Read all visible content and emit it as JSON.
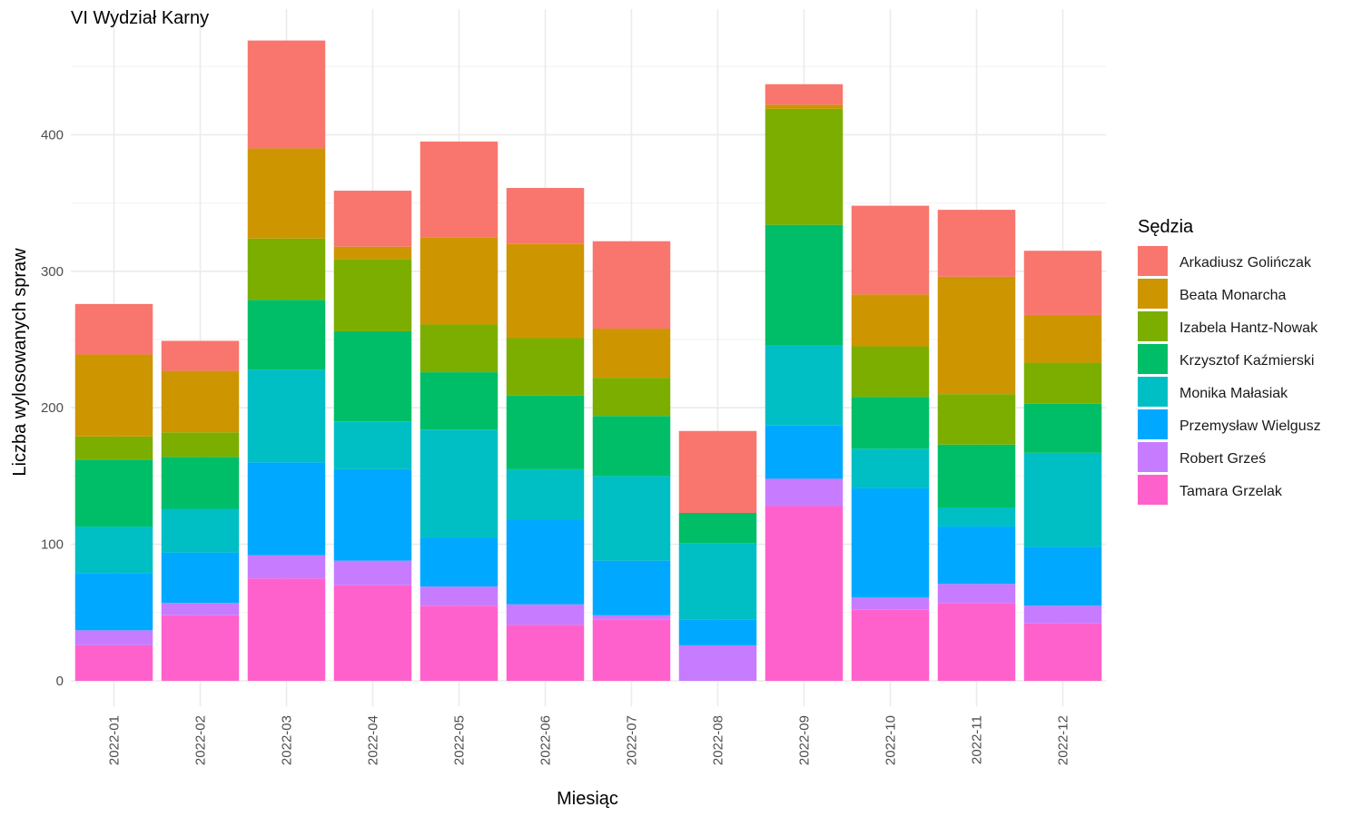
{
  "chart_data": {
    "type": "bar",
    "stacked": true,
    "title": "VI Wydział Karny",
    "xlabel": "Miesiąc",
    "ylabel": "Liczba wylosowanych spraw",
    "ylim": [
      0,
      480
    ],
    "yticks": [
      0,
      100,
      200,
      300,
      400
    ],
    "grid": true,
    "legend_title": "Sędzia",
    "legend_position": "right",
    "categories": [
      "2022-01",
      "2022-02",
      "2022-03",
      "2022-04",
      "2022-05",
      "2022-06",
      "2022-07",
      "2022-08",
      "2022-09",
      "2022-10",
      "2022-11",
      "2022-12"
    ],
    "series": [
      {
        "name": "Tamara Grzelak",
        "color": "#FF61CC",
        "values": [
          26,
          48,
          75,
          70,
          55,
          41,
          45,
          0,
          128,
          52,
          57,
          42
        ]
      },
      {
        "name": "Robert Grześ",
        "color": "#C77CFF",
        "values": [
          11,
          9,
          17,
          18,
          14,
          15,
          3,
          26,
          20,
          9,
          14,
          13
        ]
      },
      {
        "name": "Przemysław Wielgusz",
        "color": "#00A9FF",
        "values": [
          42,
          37,
          68,
          67,
          36,
          62,
          40,
          19,
          39,
          80,
          42,
          43
        ]
      },
      {
        "name": "Monika Małasiak",
        "color": "#00BFC4",
        "values": [
          34,
          32,
          68,
          35,
          79,
          37,
          62,
          56,
          59,
          29,
          14,
          69
        ]
      },
      {
        "name": "Krzysztof Kaźmierski",
        "color": "#00BE67",
        "values": [
          49,
          38,
          51,
          66,
          42,
          54,
          44,
          22,
          88,
          38,
          46,
          36
        ]
      },
      {
        "name": "Izabela Hantz-Nowak",
        "color": "#7CAE00",
        "values": [
          17,
          18,
          45,
          53,
          35,
          42,
          28,
          0,
          85,
          37,
          37,
          30
        ]
      },
      {
        "name": "Beata Monarcha",
        "color": "#CD9600",
        "values": [
          60,
          45,
          66,
          9,
          64,
          69,
          36,
          0,
          3,
          38,
          86,
          35
        ]
      },
      {
        "name": "Arkadiusz Golińczak",
        "color": "#F8766D",
        "values": [
          37,
          22,
          79,
          41,
          70,
          41,
          64,
          60,
          15,
          65,
          49,
          47
        ]
      }
    ],
    "legend_order": [
      "Arkadiusz Golińczak",
      "Beata Monarcha",
      "Izabela Hantz-Nowak",
      "Krzysztof Kaźmierski",
      "Monika Małasiak",
      "Przemysław Wielgusz",
      "Robert Grześ",
      "Tamara Grzelak"
    ]
  }
}
